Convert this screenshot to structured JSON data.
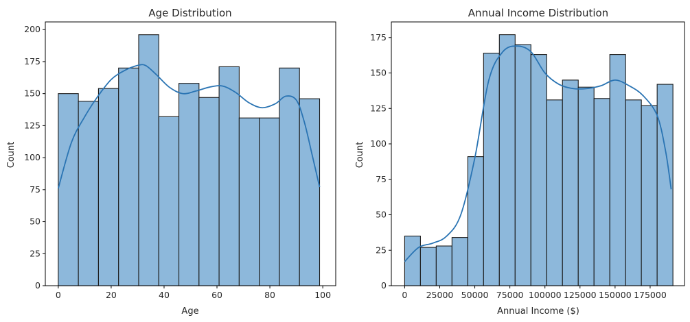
{
  "chart_data": [
    {
      "type": "bar",
      "subtype": "histogram-with-kde",
      "title": "Age Distribution",
      "xlabel": "Age",
      "ylabel": "Count",
      "xlim": [
        -4.9,
        104.9
      ],
      "ylim": [
        0,
        206
      ],
      "xticks": [
        0,
        20,
        40,
        60,
        80,
        100
      ],
      "yticks": [
        0,
        25,
        50,
        75,
        100,
        125,
        150,
        175,
        200
      ],
      "bin_edges": [
        0,
        7.6,
        15.2,
        22.8,
        30.4,
        38.0,
        45.6,
        53.2,
        60.8,
        68.4,
        76.0,
        83.6,
        91.2,
        98.8
      ],
      "values": [
        150,
        144,
        154,
        170,
        196,
        132,
        158,
        147,
        171,
        131,
        131,
        170,
        146
      ],
      "kde": {
        "x": [
          0,
          5,
          10,
          15,
          20,
          25,
          30,
          33,
          37,
          42,
          47,
          52,
          57,
          62,
          67,
          72,
          77,
          82,
          86,
          90,
          93,
          96,
          98.8
        ],
        "y": [
          76,
          112,
          132,
          148,
          161,
          168,
          172,
          172,
          165,
          155,
          150,
          152,
          155,
          156,
          151,
          143,
          139,
          142,
          148,
          145,
          128,
          102,
          77
        ]
      },
      "colors": {
        "bar": "#8db8db",
        "edge": "#1a1a1a",
        "kde": "#2a74b3"
      }
    },
    {
      "type": "bar",
      "subtype": "histogram-with-kde",
      "title": "Annual Income Distribution",
      "xlabel": "Annual Income ($)",
      "ylabel": "Count",
      "xlim": [
        -9500,
        199500
      ],
      "ylim": [
        0,
        186
      ],
      "xticks": [
        0,
        25000,
        50000,
        75000,
        100000,
        125000,
        150000,
        175000
      ],
      "yticks": [
        0,
        25,
        50,
        75,
        100,
        125,
        150,
        175
      ],
      "bin_edges": [
        0,
        11250,
        22500,
        33750,
        45000,
        56250,
        67500,
        78750,
        90000,
        101250,
        112500,
        123750,
        135000,
        146250,
        157500,
        168750,
        180000,
        191250
      ],
      "values": [
        35,
        27,
        28,
        34,
        91,
        164,
        177,
        170,
        163,
        131,
        145,
        140,
        132,
        163,
        131,
        127,
        142
      ],
      "kde": {
        "x": [
          0,
          10000,
          20000,
          30000,
          40000,
          50000,
          60000,
          70000,
          80000,
          90000,
          100000,
          110000,
          120000,
          130000,
          140000,
          150000,
          160000,
          170000,
          180000,
          186000,
          190000
        ],
        "y": [
          17,
          27,
          30,
          35,
          50,
          90,
          145,
          165,
          169,
          165,
          150,
          142,
          139,
          139,
          141,
          145,
          141,
          134,
          120,
          95,
          68
        ]
      },
      "colors": {
        "bar": "#8db8db",
        "edge": "#1a1a1a",
        "kde": "#2a74b3"
      }
    }
  ]
}
